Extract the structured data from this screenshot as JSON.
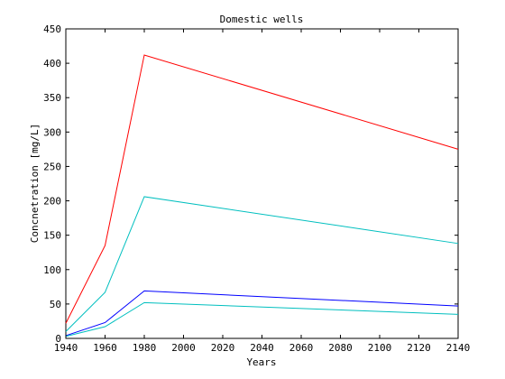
{
  "chart_data": {
    "type": "line",
    "title": "Domestic wells",
    "xlabel": "Years",
    "ylabel": "Concnetration [mg/L]",
    "xlim": [
      1940,
      2140
    ],
    "ylim": [
      0,
      450
    ],
    "xticks": [
      1940,
      1960,
      1980,
      2000,
      2020,
      2040,
      2060,
      2080,
      2100,
      2120,
      2140
    ],
    "yticks": [
      0,
      50,
      100,
      150,
      200,
      250,
      300,
      350,
      400,
      450
    ],
    "grid": false,
    "legend": "none",
    "series": [
      {
        "color": "#ff0000",
        "x": [
          1940,
          1960,
          1980,
          2140
        ],
        "y": [
          22,
          135,
          412,
          275
        ]
      },
      {
        "color": "#00bfbf",
        "x": [
          1940,
          1960,
          1980,
          2140
        ],
        "y": [
          10,
          67,
          206,
          138
        ]
      },
      {
        "color": "#0000ff",
        "x": [
          1940,
          1960,
          1980,
          2140
        ],
        "y": [
          4,
          23,
          69,
          47
        ]
      },
      {
        "color": "#00bfbf",
        "x": [
          1940,
          1960,
          1980,
          2140
        ],
        "y": [
          3,
          17,
          52,
          35
        ]
      }
    ]
  }
}
